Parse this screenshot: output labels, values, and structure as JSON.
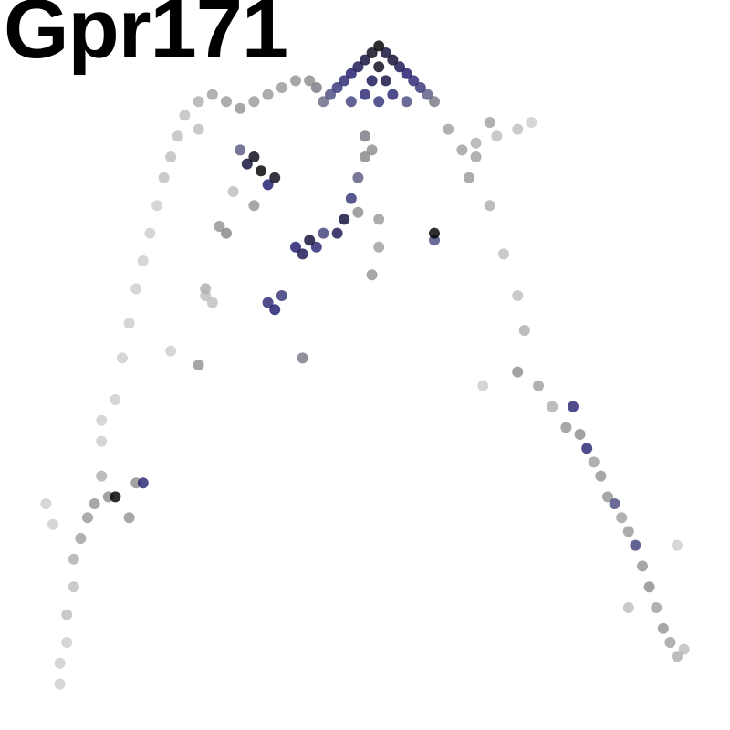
{
  "chart_data": {
    "type": "scatter",
    "title": "Gpr171",
    "xlabel": "",
    "ylabel": "",
    "axes_visible": false,
    "grid": false,
    "legend": "none",
    "color_scale": [
      "#dcdcdc",
      "#a0a0a0",
      "#888888",
      "#4b4b80",
      "#1e1a6e",
      "#000000"
    ],
    "point_opacity": 0.82,
    "x": {
      "min": 0,
      "max": 100
    },
    "y": {
      "min": 0,
      "max": 100
    },
    "expression_range": [
      0,
      1
    ],
    "points": [
      {
        "x": 52,
        "y": 4,
        "e": 1.0
      },
      {
        "x": 51,
        "y": 5,
        "e": 0.95
      },
      {
        "x": 53,
        "y": 5,
        "e": 0.9
      },
      {
        "x": 50,
        "y": 6,
        "e": 0.9
      },
      {
        "x": 54,
        "y": 6,
        "e": 0.92
      },
      {
        "x": 49,
        "y": 7,
        "e": 0.85
      },
      {
        "x": 55,
        "y": 7,
        "e": 0.85
      },
      {
        "x": 52,
        "y": 7,
        "e": 0.95
      },
      {
        "x": 48,
        "y": 8,
        "e": 0.8
      },
      {
        "x": 56,
        "y": 8,
        "e": 0.8
      },
      {
        "x": 47,
        "y": 9,
        "e": 0.75
      },
      {
        "x": 57,
        "y": 9,
        "e": 0.75
      },
      {
        "x": 51,
        "y": 9,
        "e": 0.85
      },
      {
        "x": 53,
        "y": 9,
        "e": 0.88
      },
      {
        "x": 46,
        "y": 10,
        "e": 0.7
      },
      {
        "x": 58,
        "y": 10,
        "e": 0.7
      },
      {
        "x": 50,
        "y": 11,
        "e": 0.75
      },
      {
        "x": 54,
        "y": 11,
        "e": 0.75
      },
      {
        "x": 45,
        "y": 11,
        "e": 0.6
      },
      {
        "x": 59,
        "y": 11,
        "e": 0.55
      },
      {
        "x": 44,
        "y": 12,
        "e": 0.5
      },
      {
        "x": 60,
        "y": 12,
        "e": 0.45
      },
      {
        "x": 52,
        "y": 12,
        "e": 0.7
      },
      {
        "x": 48,
        "y": 12,
        "e": 0.65
      },
      {
        "x": 56,
        "y": 12,
        "e": 0.6
      },
      {
        "x": 43,
        "y": 10,
        "e": 0.45
      },
      {
        "x": 42,
        "y": 9,
        "e": 0.35
      },
      {
        "x": 40,
        "y": 9,
        "e": 0.3
      },
      {
        "x": 38,
        "y": 10,
        "e": 0.25
      },
      {
        "x": 36,
        "y": 11,
        "e": 0.25
      },
      {
        "x": 34,
        "y": 12,
        "e": 0.25
      },
      {
        "x": 32,
        "y": 13,
        "e": 0.3
      },
      {
        "x": 30,
        "y": 12,
        "e": 0.25
      },
      {
        "x": 28,
        "y": 11,
        "e": 0.2
      },
      {
        "x": 26,
        "y": 12,
        "e": 0.15
      },
      {
        "x": 24,
        "y": 14,
        "e": 0.1
      },
      {
        "x": 23,
        "y": 17,
        "e": 0.1
      },
      {
        "x": 22,
        "y": 20,
        "e": 0.1
      },
      {
        "x": 21,
        "y": 23,
        "e": 0.1
      },
      {
        "x": 20,
        "y": 27,
        "e": 0.05
      },
      {
        "x": 19,
        "y": 31,
        "e": 0.05
      },
      {
        "x": 18,
        "y": 35,
        "e": 0.05
      },
      {
        "x": 17,
        "y": 39,
        "e": 0.05
      },
      {
        "x": 16,
        "y": 44,
        "e": 0.05
      },
      {
        "x": 15,
        "y": 49,
        "e": 0.05
      },
      {
        "x": 14,
        "y": 55,
        "e": 0.05
      },
      {
        "x": 12,
        "y": 61,
        "e": 0.05
      },
      {
        "x": 12,
        "y": 66,
        "e": 0.15
      },
      {
        "x": 11,
        "y": 70,
        "e": 0.3
      },
      {
        "x": 13,
        "y": 69,
        "e": 0.35
      },
      {
        "x": 14,
        "y": 69,
        "e": 1.0
      },
      {
        "x": 10,
        "y": 72,
        "e": 0.25
      },
      {
        "x": 9,
        "y": 75,
        "e": 0.2
      },
      {
        "x": 8,
        "y": 78,
        "e": 0.15
      },
      {
        "x": 8,
        "y": 82,
        "e": 0.1
      },
      {
        "x": 7,
        "y": 86,
        "e": 0.1
      },
      {
        "x": 7,
        "y": 90,
        "e": 0.05
      },
      {
        "x": 6,
        "y": 93,
        "e": 0.05
      },
      {
        "x": 6,
        "y": 96,
        "e": 0.05
      },
      {
        "x": 4,
        "y": 70,
        "e": 0.05
      },
      {
        "x": 5,
        "y": 73,
        "e": 0.05
      },
      {
        "x": 16,
        "y": 72,
        "e": 0.3
      },
      {
        "x": 17,
        "y": 67,
        "e": 0.35
      },
      {
        "x": 18,
        "y": 67,
        "e": 0.75
      },
      {
        "x": 12,
        "y": 58,
        "e": 0.05
      },
      {
        "x": 22,
        "y": 48,
        "e": 0.05
      },
      {
        "x": 26,
        "y": 50,
        "e": 0.3
      },
      {
        "x": 27,
        "y": 39,
        "e": 0.15
      },
      {
        "x": 28,
        "y": 41,
        "e": 0.1
      },
      {
        "x": 29,
        "y": 30,
        "e": 0.3
      },
      {
        "x": 30,
        "y": 31,
        "e": 0.4
      },
      {
        "x": 31,
        "y": 25,
        "e": 0.1
      },
      {
        "x": 33,
        "y": 21,
        "e": 0.9
      },
      {
        "x": 34,
        "y": 20,
        "e": 0.95
      },
      {
        "x": 32,
        "y": 19,
        "e": 0.55
      },
      {
        "x": 35,
        "y": 22,
        "e": 1.0
      },
      {
        "x": 36,
        "y": 24,
        "e": 0.8
      },
      {
        "x": 37,
        "y": 23,
        "e": 0.95
      },
      {
        "x": 36,
        "y": 41,
        "e": 0.75
      },
      {
        "x": 37,
        "y": 42,
        "e": 0.8
      },
      {
        "x": 38,
        "y": 40,
        "e": 0.7
      },
      {
        "x": 40,
        "y": 33,
        "e": 0.8
      },
      {
        "x": 41,
        "y": 34,
        "e": 0.85
      },
      {
        "x": 42,
        "y": 32,
        "e": 0.9
      },
      {
        "x": 43,
        "y": 33,
        "e": 0.75
      },
      {
        "x": 44,
        "y": 31,
        "e": 0.65
      },
      {
        "x": 46,
        "y": 31,
        "e": 0.85
      },
      {
        "x": 47,
        "y": 29,
        "e": 0.9
      },
      {
        "x": 48,
        "y": 26,
        "e": 0.7
      },
      {
        "x": 49,
        "y": 23,
        "e": 0.55
      },
      {
        "x": 50,
        "y": 20,
        "e": 0.4
      },
      {
        "x": 49,
        "y": 28,
        "e": 0.35
      },
      {
        "x": 50,
        "y": 17,
        "e": 0.45
      },
      {
        "x": 51,
        "y": 19,
        "e": 0.35
      },
      {
        "x": 41,
        "y": 49,
        "e": 0.45
      },
      {
        "x": 52,
        "y": 29,
        "e": 0.25
      },
      {
        "x": 52,
        "y": 33,
        "e": 0.2
      },
      {
        "x": 51,
        "y": 37,
        "e": 0.3
      },
      {
        "x": 60,
        "y": 31,
        "e": 1.0
      },
      {
        "x": 60,
        "y": 32,
        "e": 0.6
      },
      {
        "x": 62,
        "y": 16,
        "e": 0.2
      },
      {
        "x": 64,
        "y": 19,
        "e": 0.2
      },
      {
        "x": 65,
        "y": 23,
        "e": 0.25
      },
      {
        "x": 66,
        "y": 20,
        "e": 0.2
      },
      {
        "x": 68,
        "y": 27,
        "e": 0.15
      },
      {
        "x": 70,
        "y": 34,
        "e": 0.1
      },
      {
        "x": 72,
        "y": 40,
        "e": 0.1
      },
      {
        "x": 73,
        "y": 45,
        "e": 0.15
      },
      {
        "x": 67,
        "y": 53,
        "e": 0.05
      },
      {
        "x": 72,
        "y": 51,
        "e": 0.35
      },
      {
        "x": 75,
        "y": 53,
        "e": 0.2
      },
      {
        "x": 77,
        "y": 56,
        "e": 0.15
      },
      {
        "x": 79,
        "y": 59,
        "e": 0.3
      },
      {
        "x": 80,
        "y": 56,
        "e": 0.75
      },
      {
        "x": 81,
        "y": 60,
        "e": 0.35
      },
      {
        "x": 82,
        "y": 62,
        "e": 0.75
      },
      {
        "x": 83,
        "y": 64,
        "e": 0.2
      },
      {
        "x": 84,
        "y": 66,
        "e": 0.3
      },
      {
        "x": 85,
        "y": 69,
        "e": 0.3
      },
      {
        "x": 86,
        "y": 70,
        "e": 0.6
      },
      {
        "x": 87,
        "y": 72,
        "e": 0.2
      },
      {
        "x": 88,
        "y": 74,
        "e": 0.25
      },
      {
        "x": 89,
        "y": 76,
        "e": 0.65
      },
      {
        "x": 90,
        "y": 79,
        "e": 0.3
      },
      {
        "x": 91,
        "y": 82,
        "e": 0.35
      },
      {
        "x": 92,
        "y": 85,
        "e": 0.2
      },
      {
        "x": 93,
        "y": 88,
        "e": 0.3
      },
      {
        "x": 94,
        "y": 90,
        "e": 0.2
      },
      {
        "x": 95,
        "y": 92,
        "e": 0.15
      },
      {
        "x": 96,
        "y": 91,
        "e": 0.1
      },
      {
        "x": 88,
        "y": 85,
        "e": 0.1
      },
      {
        "x": 95,
        "y": 76,
        "e": 0.05
      },
      {
        "x": 66,
        "y": 18,
        "e": 0.15
      },
      {
        "x": 69,
        "y": 17,
        "e": 0.1
      },
      {
        "x": 72,
        "y": 16,
        "e": 0.1
      },
      {
        "x": 74,
        "y": 15,
        "e": 0.05
      },
      {
        "x": 68,
        "y": 15,
        "e": 0.2
      },
      {
        "x": 26,
        "y": 16,
        "e": 0.1
      },
      {
        "x": 27,
        "y": 40,
        "e": 0.1
      },
      {
        "x": 34,
        "y": 27,
        "e": 0.3
      }
    ]
  }
}
